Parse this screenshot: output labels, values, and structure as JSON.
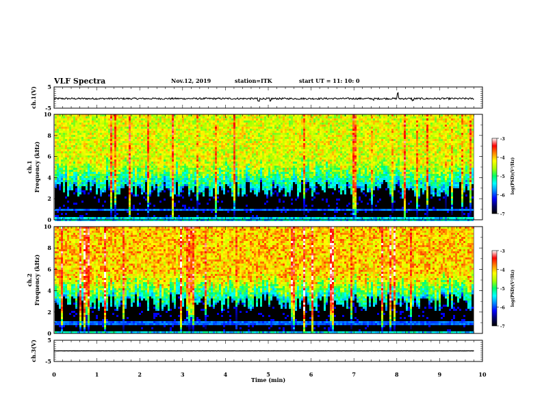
{
  "header": {
    "title": "VLF Spectra",
    "date": "Nov.12, 2019",
    "station": "station=ITK",
    "start": "start UT =   11: 10: 0"
  },
  "colorbar": {
    "label": "log(PSD)(V²/Hz)",
    "ticks": [
      "-3",
      "-4",
      "-5",
      "-6",
      "-7"
    ],
    "stops": [
      "#000000",
      "#000066",
      "#0000ff",
      "#0088ff",
      "#00ffff",
      "#00ff66",
      "#aaff00",
      "#ffff00",
      "#ff8800",
      "#ff0000",
      "#ffffff"
    ]
  },
  "chart_data": [
    {
      "type": "line",
      "name": "ch1-waveform",
      "ylabel": "ch.1(V)",
      "ylim": [
        -5,
        5
      ],
      "yticks": [
        "5",
        "-5"
      ],
      "xlim": [
        0,
        10
      ],
      "approx_level": -0.5,
      "noise_amplitude": 0.4,
      "spikes": [
        {
          "t": 4.77,
          "v": -2.0
        },
        {
          "t": 5.05,
          "v": -1.8
        },
        {
          "t": 7.45,
          "v": -1.6
        },
        {
          "t": 8.02,
          "v": 2.5
        },
        {
          "t": 8.38,
          "v": -1.7
        }
      ]
    },
    {
      "type": "heatmap",
      "name": "ch1-spectrogram",
      "ylabel": "ch.1",
      "ylabel2": "Frequency (kHz)",
      "ylim": [
        0,
        10
      ],
      "yticks": [
        "0",
        "2",
        "4",
        "6",
        "8",
        "10"
      ],
      "xlim": [
        0,
        10
      ],
      "data_end_min": 9.8,
      "color_range": [
        -7,
        -3
      ],
      "noise_floor_khz": 3.0,
      "intensity": 0.55
    },
    {
      "type": "heatmap",
      "name": "ch2-spectrogram",
      "ylabel": "ch.2",
      "ylabel2": "Frequency (kHz)",
      "ylim": [
        0,
        10
      ],
      "yticks": [
        "0",
        "2",
        "4",
        "6",
        "8",
        "10"
      ],
      "xlim": [
        0,
        10
      ],
      "data_end_min": 9.8,
      "color_range": [
        -7,
        -3
      ],
      "noise_floor_khz": 3.0,
      "intensity": 0.8
    },
    {
      "type": "line",
      "name": "ch3-waveform",
      "ylabel": "ch.3(V)",
      "ylim": [
        -5,
        5
      ],
      "yticks": [
        "5",
        "-5"
      ],
      "xlim": [
        0,
        10
      ],
      "approx_level": 0.0,
      "noise_amplitude": 0.05,
      "spikes": []
    }
  ],
  "xaxis": {
    "label": "Time (min)",
    "ticks": [
      "0",
      "1",
      "2",
      "3",
      "4",
      "5",
      "6",
      "7",
      "8",
      "9",
      "10"
    ]
  }
}
